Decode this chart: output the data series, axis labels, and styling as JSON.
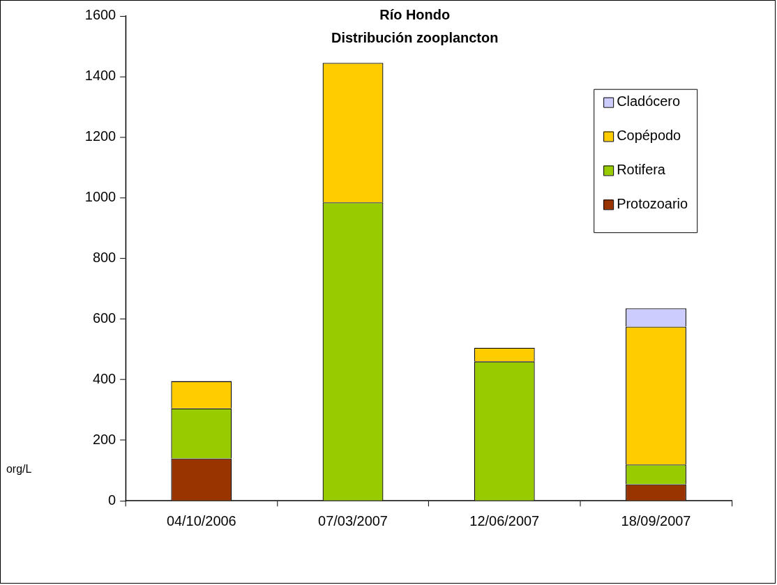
{
  "chart_data": {
    "type": "bar",
    "title": [
      "Río Hondo",
      "Distribución zooplancton"
    ],
    "ylabel": "org/L",
    "categories": [
      "04/10/2006",
      "07/03/2007",
      "12/06/2007",
      "18/09/2007"
    ],
    "stacked": true,
    "series": [
      {
        "name": "Protozoario",
        "color": "#993300",
        "values": [
          140,
          0,
          0,
          55
        ]
      },
      {
        "name": "Rotifera",
        "color": "#99cc00",
        "values": [
          165,
          985,
          460,
          65
        ]
      },
      {
        "name": "Copépodo",
        "color": "#ffcc00",
        "values": [
          90,
          460,
          45,
          455
        ]
      },
      {
        "name": "Cladócero",
        "color": "#ccccff",
        "values": [
          0,
          0,
          0,
          60
        ]
      }
    ],
    "ylim": [
      0,
      1600
    ],
    "yticks": [
      0,
      200,
      400,
      600,
      800,
      1000,
      1200,
      1400,
      1600
    ],
    "grid": false,
    "legend": "top right"
  }
}
